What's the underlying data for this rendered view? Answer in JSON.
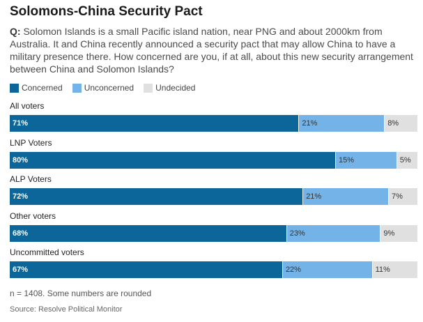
{
  "title": "Solomons-China Security Pact",
  "question": {
    "prefix": "Q:",
    "text": "Solomon Islands is a small Pacific island nation, near PNG and about 2000km from Australia. It and China recently announced a security pact that may allow China to have a military presence there. How concerned are you, if at all, about this new security arrangement between China and Solomon Islands?"
  },
  "colors": {
    "concerned": "#0d6699",
    "unconcerned": "#73b3e7",
    "undecided": "#e0e0e0"
  },
  "chart_data": {
    "type": "bar",
    "orientation": "horizontal",
    "stacked": true,
    "categories": [
      "All voters",
      "LNP Voters",
      "ALP Voters",
      "Other voters",
      "Uncommitted voters"
    ],
    "series": [
      {
        "name": "Concerned",
        "values": [
          71,
          80,
          72,
          68,
          67
        ]
      },
      {
        "name": "Unconcerned",
        "values": [
          21,
          15,
          21,
          23,
          22
        ]
      },
      {
        "name": "Undecided",
        "values": [
          8,
          5,
          7,
          9,
          11
        ]
      }
    ],
    "value_suffix": "%",
    "legend_position": "top-left"
  },
  "footer": {
    "note": "n = 1408. Some numbers are rounded",
    "source": "Source: Resolve Political Monitor"
  }
}
